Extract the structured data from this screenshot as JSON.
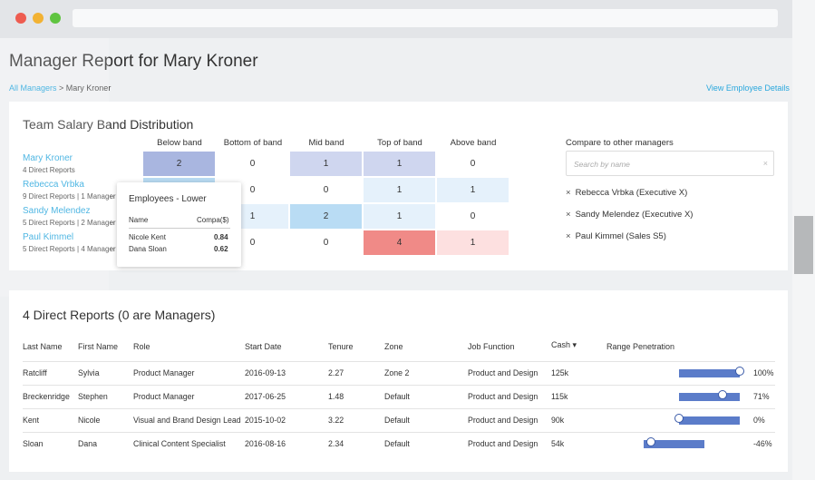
{
  "page": {
    "title": "Manager Report for Mary Kroner",
    "breadcrumb": {
      "link": "All Managers",
      "separator": " > ",
      "current": "Mary Kroner"
    },
    "view_details_link": "View Employee Details"
  },
  "salary_band": {
    "title": "Team Salary Band Distribution",
    "columns": [
      "Below band",
      "Bottom of band",
      "Mid band",
      "Top of band",
      "Above band"
    ],
    "managers": [
      {
        "name": "Mary Kroner",
        "sub": "4 Direct Reports",
        "cells": [
          "2",
          "0",
          "1",
          "1",
          "0"
        ]
      },
      {
        "name": "Rebecca Vrbka",
        "sub": "9 Direct Reports | 1 Manager",
        "cells": [
          "",
          "0",
          "0",
          "1",
          "1"
        ]
      },
      {
        "name": "Sandy Melendez",
        "sub": "5 Direct Reports | 2 Manager",
        "cells": [
          "",
          "1",
          "2",
          "1",
          "0"
        ]
      },
      {
        "name": "Paul Kimmel",
        "sub": "5 Direct Reports | 4 Manager",
        "cells": [
          "",
          "0",
          "0",
          "4",
          "1"
        ]
      }
    ],
    "compare": {
      "label": "Compare to other managers",
      "placeholder": "Search by name",
      "clear_icon": "close-icon",
      "selected": [
        "Rebecca Vrbka (Executive X)",
        "Sandy Melendez (Executive X)",
        "Paul Kimmel (Sales S5)"
      ]
    },
    "tooltip": {
      "title": "Employees - Lower",
      "col_name": "Name",
      "col_compa": "Compa($)",
      "rows": [
        {
          "name": "Nicole Kent",
          "compa": "0.84"
        },
        {
          "name": "Dana Sloan",
          "compa": "0.62"
        }
      ]
    }
  },
  "direct_reports": {
    "title": "4 Direct Reports (0 are Managers)",
    "headers": [
      "Last Name",
      "First Name",
      "Role",
      "Start Date",
      "Tenure",
      "Zone",
      "Job Function",
      "Cash ▾",
      "Range Penetration"
    ],
    "rows": [
      {
        "last": "Ratcliff",
        "first": "Sylvia",
        "role": "Product Manager",
        "start": "2016-09-13",
        "tenure": "2.27",
        "zone": "Zone 2",
        "function": "Product and Design",
        "cash": "125k",
        "penetration": "100%",
        "penetration_value": 100
      },
      {
        "last": "Breckenridge",
        "first": "Stephen",
        "role": "Product Manager",
        "start": "2017-06-25",
        "tenure": "1.48",
        "zone": "Default",
        "function": "Product and Design",
        "cash": "115k",
        "penetration": "71%",
        "penetration_value": 71
      },
      {
        "last": "Kent",
        "first": "Nicole",
        "role": "Visual and Brand Design Lead",
        "start": "2015-10-02",
        "tenure": "3.22",
        "zone": "Default",
        "function": "Product and Design",
        "cash": "90k",
        "penetration": "0%",
        "penetration_value": 0
      },
      {
        "last": "Sloan",
        "first": "Dana",
        "role": "Clinical Content Specialist",
        "start": "2016-08-16",
        "tenure": "2.34",
        "zone": "Default",
        "function": "Product and Design",
        "cash": "54k",
        "penetration": "-46%",
        "penetration_value": -46
      }
    ]
  },
  "colors": {
    "link": "#29a7dd",
    "below_band": "#a9b6e0",
    "mid_band": "#cfd6ef",
    "light_blue": "#e5f1fb",
    "highlight_blue": "#b9dcf4",
    "top_red": "#f08a87",
    "above_pink": "#fde0e0",
    "bar": "#5b7cc9"
  }
}
